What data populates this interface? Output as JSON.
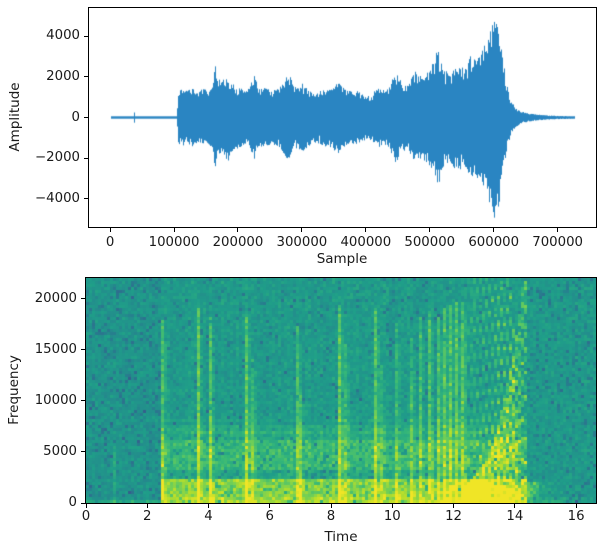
{
  "figure": {
    "background": "#ffffff",
    "spine_color": "#000000",
    "text_color": "#1a1a1a"
  },
  "chart_data": [
    {
      "type": "line",
      "subtype": "audio-waveform",
      "xlabel": "Sample",
      "ylabel": "Amplitude",
      "line_color": "#2a85c2",
      "xlim": [
        -33000,
        760000
      ],
      "ylim": [
        -5400,
        5400
      ],
      "xticks": [
        0,
        100000,
        200000,
        300000,
        400000,
        500000,
        600000,
        700000
      ],
      "yticks": [
        -4000,
        -2000,
        0,
        2000,
        4000
      ],
      "n_samples": 727000,
      "description": "Near-zero signal from sample 0 to ~105000 with a small click near 37000; sustained activity from ~106000 to ~620000 growing from ~1400 to a ~5050 peak near sample 600000; rapid decay back to silence by ~727000.",
      "envelope": [
        [
          0,
          55
        ],
        [
          36,
          55
        ],
        [
          37,
          450
        ],
        [
          38.5,
          55
        ],
        [
          104,
          55
        ],
        [
          106,
          1350
        ],
        [
          112,
          1400
        ],
        [
          120,
          1300
        ],
        [
          128,
          1450
        ],
        [
          136,
          1300
        ],
        [
          144,
          1400
        ],
        [
          152,
          1350
        ],
        [
          160,
          1550
        ],
        [
          164,
          2650
        ],
        [
          167,
          2100
        ],
        [
          172,
          1750
        ],
        [
          178,
          1900
        ],
        [
          184,
          2150
        ],
        [
          190,
          1700
        ],
        [
          196,
          1550
        ],
        [
          202,
          1500
        ],
        [
          208,
          1350
        ],
        [
          214,
          1300
        ],
        [
          220,
          1700
        ],
        [
          226,
          2100
        ],
        [
          232,
          1500
        ],
        [
          238,
          1400
        ],
        [
          244,
          1500
        ],
        [
          250,
          1300
        ],
        [
          256,
          1350
        ],
        [
          262,
          1400
        ],
        [
          268,
          1600
        ],
        [
          274,
          1950
        ],
        [
          280,
          2100
        ],
        [
          286,
          1600
        ],
        [
          292,
          1500
        ],
        [
          298,
          1650
        ],
        [
          304,
          1700
        ],
        [
          310,
          1400
        ],
        [
          316,
          1350
        ],
        [
          322,
          1250
        ],
        [
          328,
          1300
        ],
        [
          334,
          1400
        ],
        [
          340,
          1500
        ],
        [
          346,
          1450
        ],
        [
          352,
          1700
        ],
        [
          357,
          2000
        ],
        [
          362,
          1500
        ],
        [
          368,
          1400
        ],
        [
          374,
          1300
        ],
        [
          380,
          1350
        ],
        [
          386,
          1300
        ],
        [
          392,
          1200
        ],
        [
          398,
          1150
        ],
        [
          404,
          1050
        ],
        [
          410,
          1200
        ],
        [
          416,
          1400
        ],
        [
          422,
          1500
        ],
        [
          428,
          1350
        ],
        [
          434,
          1400
        ],
        [
          440,
          1800
        ],
        [
          446,
          2300
        ],
        [
          452,
          1900
        ],
        [
          458,
          1650
        ],
        [
          464,
          1600
        ],
        [
          470,
          2000
        ],
        [
          476,
          2300
        ],
        [
          482,
          2000
        ],
        [
          488,
          2100
        ],
        [
          494,
          2200
        ],
        [
          500,
          2400
        ],
        [
          506,
          2800
        ],
        [
          511,
          3450
        ],
        [
          516,
          3100
        ],
        [
          521,
          2500
        ],
        [
          526,
          2300
        ],
        [
          532,
          2200
        ],
        [
          538,
          2500
        ],
        [
          544,
          2700
        ],
        [
          550,
          2450
        ],
        [
          556,
          2600
        ],
        [
          562,
          3100
        ],
        [
          568,
          2900
        ],
        [
          574,
          3000
        ],
        [
          580,
          3300
        ],
        [
          586,
          3600
        ],
        [
          592,
          4100
        ],
        [
          598,
          4800
        ],
        [
          602,
          5050
        ],
        [
          606,
          4500
        ],
        [
          610,
          3900
        ],
        [
          614,
          3000
        ],
        [
          618,
          2000
        ],
        [
          622,
          1300
        ],
        [
          626,
          900
        ],
        [
          630,
          650
        ],
        [
          635,
          450
        ],
        [
          640,
          330
        ],
        [
          648,
          250
        ],
        [
          656,
          190
        ],
        [
          666,
          150
        ],
        [
          680,
          110
        ],
        [
          700,
          80
        ],
        [
          727,
          60
        ]
      ]
    },
    {
      "type": "heatmap",
      "subtype": "spectrogram",
      "colormap": "viridis",
      "xlabel": "Time",
      "ylabel": "Frequency",
      "xlim": [
        0,
        16.65
      ],
      "ylim": [
        0,
        22050
      ],
      "xticks": [
        0,
        2,
        4,
        6,
        8,
        10,
        12,
        14,
        16
      ],
      "yticks": [
        0,
        5000,
        10000,
        15000,
        20000
      ],
      "onset": 2.45,
      "end": 14.35,
      "description": "Quiet teal region until t=2.45 s; then broadband activity: bright yellow band below ~2.4 kHz, green speckle 3.2-6.3 kHz, sharp vertical transients, accelerating from t=11 s into a fan of rising harmonic arcs converging near t=14.3 s; quiet again after t=14.4 s.",
      "pre_line": {
        "t": 0.91,
        "max_hz": 5600,
        "strength": 0.09
      },
      "bands": [
        {
          "f0": 0,
          "f1": 2400,
          "v": 0.74,
          "jitter": 0.15
        },
        {
          "f0": 2400,
          "f1": 3200,
          "v": 0.56,
          "jitter": 0.07
        },
        {
          "f0": 3200,
          "f1": 6300,
          "v": 0.62,
          "jitter": 0.11
        },
        {
          "f0": 6300,
          "f1": 7600,
          "v": 0.56,
          "jitter": 0.07
        },
        {
          "f0": 7600,
          "f1": 22050,
          "v": 0.515,
          "jitter": 0.055
        }
      ],
      "transients": [
        {
          "t": 2.45,
          "top": 17800,
          "s": 0.3
        },
        {
          "t": 3.7,
          "top": 19200,
          "s": 0.34
        },
        {
          "t": 4.02,
          "top": 18200,
          "s": 0.3
        },
        {
          "t": 5.27,
          "top": 18600,
          "s": 0.32
        },
        {
          "t": 5.42,
          "top": 14500,
          "s": 0.2
        },
        {
          "t": 6.86,
          "top": 17200,
          "s": 0.26
        },
        {
          "t": 7.04,
          "top": 11000,
          "s": 0.16
        },
        {
          "t": 8.27,
          "top": 19300,
          "s": 0.34
        },
        {
          "t": 8.44,
          "top": 15500,
          "s": 0.2
        },
        {
          "t": 9.47,
          "top": 19200,
          "s": 0.32
        },
        {
          "t": 9.63,
          "top": 13500,
          "s": 0.18
        },
        {
          "t": 10.17,
          "top": 17600,
          "s": 0.26
        },
        {
          "t": 10.6,
          "top": 16200,
          "s": 0.24
        },
        {
          "t": 10.95,
          "top": 18200,
          "s": 0.27
        },
        {
          "t": 11.25,
          "top": 18800,
          "s": 0.3
        },
        {
          "t": 11.5,
          "top": 18300,
          "s": 0.3
        },
        {
          "t": 11.72,
          "top": 19300,
          "s": 0.32
        },
        {
          "t": 11.92,
          "top": 19300,
          "s": 0.32
        },
        {
          "t": 12.1,
          "top": 19600,
          "s": 0.33
        },
        {
          "t": 12.28,
          "top": 19600,
          "s": 0.33
        }
      ],
      "arcs": {
        "start": 12.25,
        "end": 14.42,
        "converge": 14.3,
        "tau": 0.75,
        "base_hz": 740,
        "count": 30,
        "strength": 0.3
      },
      "dot_texture": {
        "start": 12.3,
        "end": 14.15,
        "min_hz": 1500,
        "strength": 0.24
      },
      "low_blob": {
        "start": 12.3,
        "end": 14.6,
        "center": 13.6,
        "width": 0.9,
        "max_hz": 1600,
        "strength": 0.24
      }
    }
  ]
}
